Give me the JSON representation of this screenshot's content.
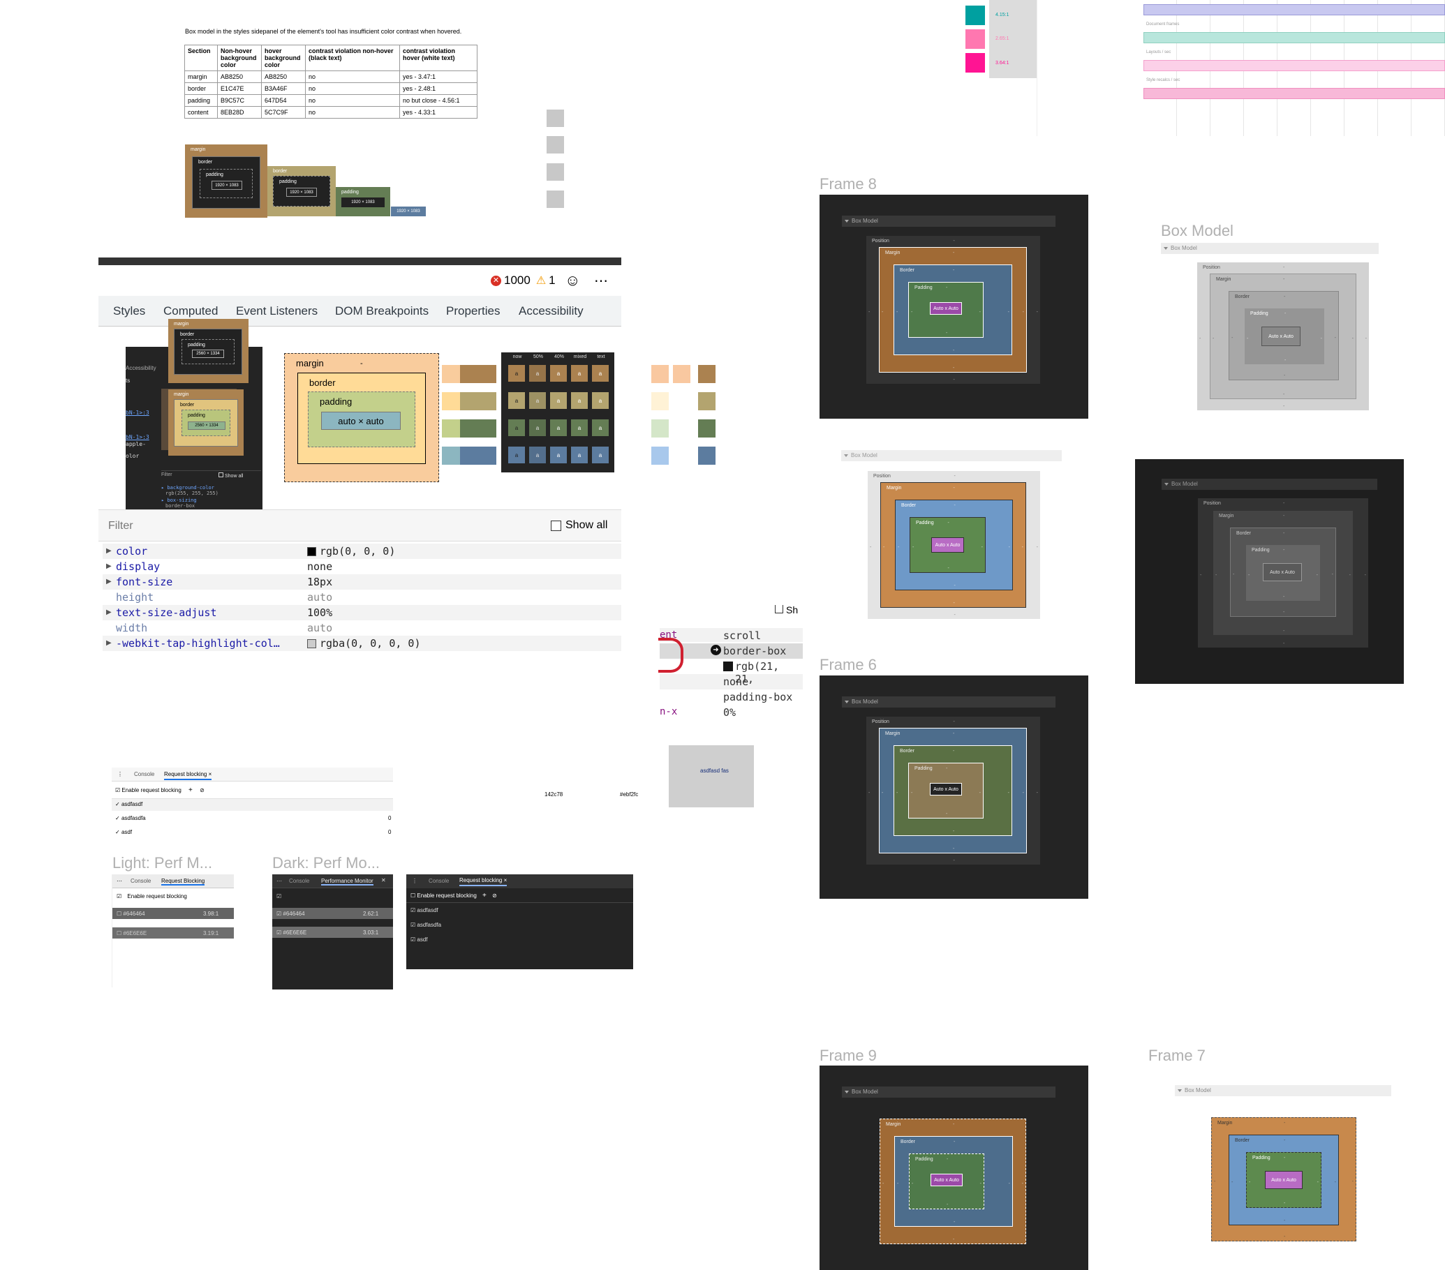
{
  "issue": {
    "text": "Box model in the styles sidepanel of the element's tool has insufficient color contrast when hovered.",
    "table": {
      "headers": [
        "Section",
        "Non-hover background color",
        "hover background color",
        "contrast violation non-hover (black text)",
        "contrast violation hover (white text)"
      ],
      "rows": [
        [
          "margin",
          "AB8250",
          "AB8250",
          "no",
          "yes - 3.47:1"
        ],
        [
          "border",
          "E1C47E",
          "B3A46F",
          "no",
          "yes - 2.48:1"
        ],
        [
          "padding",
          "B9C57C",
          "647D54",
          "no",
          "no but close - 4.56:1"
        ],
        [
          "content",
          "8EB28D",
          "5C7C9F",
          "no",
          "yes - 4.33:1"
        ]
      ]
    },
    "mini": {
      "margin": "margin",
      "border": "border",
      "padding": "padding",
      "dash": "-",
      "size": "1920 × 1083"
    }
  },
  "devtools": {
    "errors": "1000",
    "warnings": "1",
    "tabs": [
      "Styles",
      "Computed",
      "Event Listeners",
      "DOM Breakpoints",
      "Properties",
      "Accessibility"
    ],
    "box": {
      "margin": "margin",
      "border": "border",
      "padding": "padding",
      "content": "auto × auto",
      "dash": "-"
    },
    "filter_placeholder": "Filter",
    "show_all": "Show all",
    "props": [
      {
        "name": "color",
        "value": "rgb(0, 0, 0)",
        "swatch": "#000000",
        "inherited": false
      },
      {
        "name": "display",
        "value": "none",
        "inherited": false
      },
      {
        "name": "font-size",
        "value": "18px",
        "inherited": false
      },
      {
        "name": "height",
        "value": "auto",
        "inherited": true
      },
      {
        "name": "text-size-adjust",
        "value": "100%",
        "inherited": false
      },
      {
        "name": "width",
        "value": "auto",
        "inherited": true
      },
      {
        "name": "-webkit-tap-highlight-col…",
        "value": "rgba(0, 0, 0, 0)",
        "swatch": "#cccccc",
        "inherited": false
      }
    ],
    "overlay": {
      "accessibility": "Accessibility",
      "margin": "margin",
      "border": "border",
      "padding": "padding",
      "size": "2560 × 1334",
      "filter": "Filter",
      "show_all": "Show all",
      "css1": "background-color",
      "css1v": "rgb(255, 255, 255)",
      "css2": "box-sizing",
      "css2v": "border-box",
      "frag1": "ts",
      "frag2": "apple-",
      "frag3": "olor",
      "link1": "bN-1>:3",
      "link2": "bN-1>:3"
    }
  },
  "palette_header": [
    "now",
    "50%",
    "40%",
    "mixed",
    "text"
  ],
  "palette_cell": "a",
  "colors": {
    "margin": "#AB8250",
    "border": "#E1C47E",
    "padding": "#B9C57C",
    "content": "#8EB28D",
    "hover_margin": "#AB8250",
    "hover_border": "#B3A46F",
    "hover_padding": "#647D54",
    "hover_content": "#5C7C9F",
    "dt_margin": "#f9cc9d",
    "dt_border": "#ffdb97",
    "dt_padding": "#c3d08b",
    "dt_content": "#8cb6c0"
  },
  "contrast_top": [
    "4.15:1",
    "2.65:1",
    "3.64:1"
  ],
  "perf_labels": [
    "Document frames",
    "Layouts / sec",
    "Style recalcs / sec"
  ],
  "computed_frag": {
    "rows": [
      "scroll",
      "border-box",
      "rgb(21, 21,",
      "none",
      "padding-box",
      "0%"
    ],
    "left1": "ent",
    "left2": "n-x",
    "top": "Sh"
  },
  "asdf_box": "asdfasd fas",
  "hexes": [
    "142c78",
    "#ebf2fc"
  ],
  "request_blocking": {
    "tabs": [
      "Console",
      "Request blocking"
    ],
    "enable": "Enable request blocking",
    "items": [
      {
        "name": "asdfasdf",
        "count": ""
      },
      {
        "name": "asdfasdfa",
        "count": "0"
      },
      {
        "name": "asdf",
        "count": "0"
      }
    ]
  },
  "light_perf": {
    "title": "Light: Perf M...",
    "tabs": [
      "Console",
      "Request Blocking"
    ],
    "enable": "Enable request blocking",
    "rows": [
      {
        "hex": "#646464",
        "ratio": "3.98:1"
      },
      {
        "hex": "#6E6E6E",
        "ratio": "3.19:1"
      }
    ]
  },
  "dark_perf": {
    "title": "Dark: Perf Mo...",
    "tabs": [
      "Console",
      "Performance Monitor"
    ],
    "rows": [
      {
        "hex": "#646464",
        "ratio": "2.62:1"
      },
      {
        "hex": "#6E6E6E",
        "ratio": "3.03:1"
      }
    ]
  },
  "dark_rb": {
    "tabs": [
      "Console",
      "Request blocking"
    ],
    "enable": "Enable request blocking",
    "items": [
      "asdfasdf",
      "asdfasdfa",
      "asdf"
    ]
  },
  "frames": {
    "frame8": "Frame 8",
    "frame6": "Frame 6",
    "frame9": "Frame 9",
    "frame7": "Frame 7",
    "box_model": "Box Model",
    "header": "Box Model",
    "position": "Position",
    "margin": "Margin",
    "border": "Border",
    "padding": "Padding",
    "content": "Auto x Auto",
    "dash": "-"
  }
}
